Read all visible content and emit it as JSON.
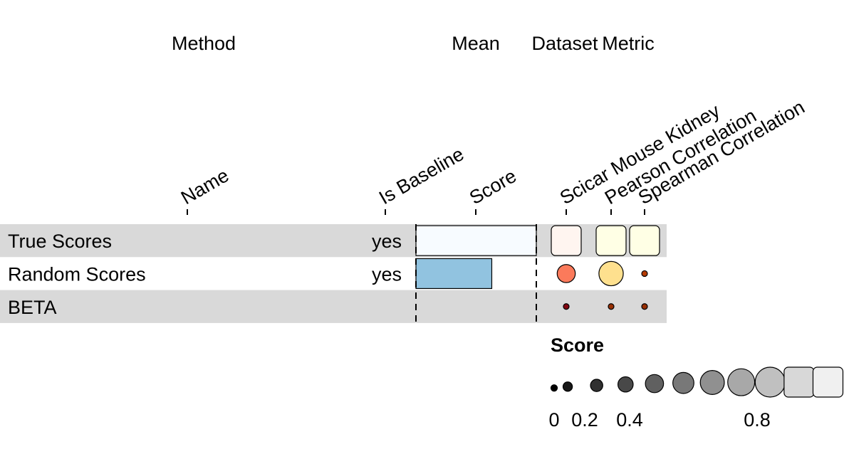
{
  "chart_data": {
    "type": "table",
    "group_headers": [
      "Method",
      "Mean",
      "Dataset",
      "Metric"
    ],
    "columns": [
      "Name",
      "Is Baseline",
      "Score",
      "Scicar Mouse Kidney",
      "Pearson Correlation",
      "Spearman Correlation"
    ],
    "rows": [
      {
        "name": "True Scores",
        "is_baseline": "yes",
        "score": 1.0,
        "scicar_mouse_kidney": 1.0,
        "pearson_correlation": 1.0,
        "spearman_correlation": 1.0
      },
      {
        "name": "Random Scores",
        "is_baseline": "yes",
        "score": 0.63,
        "scicar_mouse_kidney": 0.55,
        "pearson_correlation": 0.74,
        "spearman_correlation": 0.15
      },
      {
        "name": "BETA",
        "is_baseline": "",
        "score": 0.0,
        "scicar_mouse_kidney": 0.07,
        "pearson_correlation": 0.07,
        "spearman_correlation": 0.07
      }
    ],
    "legend": {
      "title": "Score",
      "values": [
        0,
        0.1,
        0.2,
        0.3,
        0.4,
        0.5,
        0.6,
        0.7,
        0.8,
        0.9,
        1.0
      ],
      "tick_labels": [
        "0",
        "0.2",
        "0.4",
        "0.8"
      ]
    }
  },
  "colors": {
    "row_stripe": "#d9d9d9",
    "bar_fill_low": "#f7fbff",
    "bar_fill_high": "#6baed6",
    "dataset_scale": [
      "#67000d",
      "#cb181d",
      "#fb6a4a",
      "#fcbba1",
      "#fff5f0"
    ],
    "metric_scale": [
      "#7f2704",
      "#d94801",
      "#fd8d3c",
      "#fee391",
      "#ffffe5"
    ],
    "legend_scale": [
      "#000000",
      "#f0f0f0"
    ]
  }
}
